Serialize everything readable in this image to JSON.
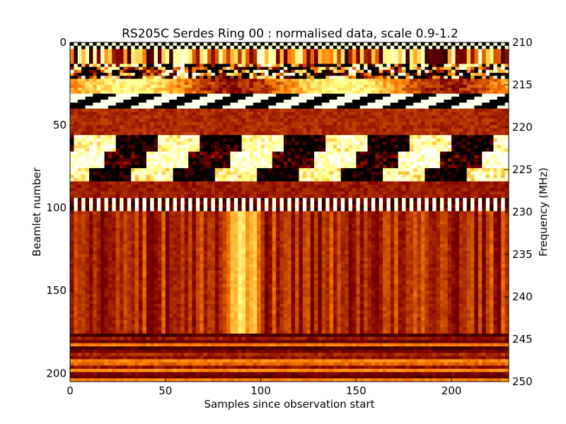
{
  "chart_data": {
    "type": "heatmap",
    "title": "RS205C Serdes Ring 00 : normalised data, scale 0.9-1.2",
    "xlabel": "Samples since observation start",
    "ylabel": "Beamlet number",
    "y2label": "Frequency (MHz)",
    "xlim": [
      0,
      230
    ],
    "ylim": [
      205,
      0
    ],
    "y2lim": [
      210,
      250
    ],
    "color_scale": [
      0.9,
      1.2
    ],
    "colormap": "afmhot",
    "colormap_colors": [
      "#000000",
      "#800000",
      "#ff8000",
      "#ffff80",
      "#ffffff"
    ],
    "x_ticks": [
      "0",
      "50",
      "100",
      "150",
      "200"
    ],
    "y_ticks": [
      "0",
      "50",
      "100",
      "150",
      "200"
    ],
    "y2_ticks": [
      "210",
      "215",
      "220",
      "225",
      "230",
      "235",
      "240",
      "245",
      "250"
    ],
    "bands": [
      {
        "y": [
          0,
          4
        ],
        "level": 1.02,
        "pattern": "hatch"
      },
      {
        "y": [
          4,
          13
        ],
        "level": 1.05,
        "pattern": "streaky"
      },
      {
        "y": [
          13,
          22
        ],
        "level": 1.0,
        "pattern": "checker"
      },
      {
        "y": [
          22,
          31
        ],
        "level": 1.06,
        "pattern": "smooth"
      },
      {
        "y": [
          31,
          40
        ],
        "level": 1.04,
        "pattern": "diagonal"
      },
      {
        "y": [
          40,
          56
        ],
        "level": 1.0,
        "pattern": "flat"
      },
      {
        "y": [
          56,
          66
        ],
        "level": 1.03,
        "pattern": "blocky"
      },
      {
        "y": [
          66,
          76
        ],
        "level": 1.06,
        "pattern": "blocky"
      },
      {
        "y": [
          76,
          84
        ],
        "level": 1.02,
        "pattern": "blocky"
      },
      {
        "y": [
          84,
          94
        ],
        "level": 0.99,
        "pattern": "flat"
      },
      {
        "y": [
          94,
          102
        ],
        "level": 1.05,
        "pattern": "bars"
      },
      {
        "y": [
          102,
          176
        ],
        "level": 1.0,
        "pattern": "vertical-streaks"
      },
      {
        "y": [
          176,
          205
        ],
        "level": 1.0,
        "pattern": "horizontal-lines"
      }
    ]
  }
}
